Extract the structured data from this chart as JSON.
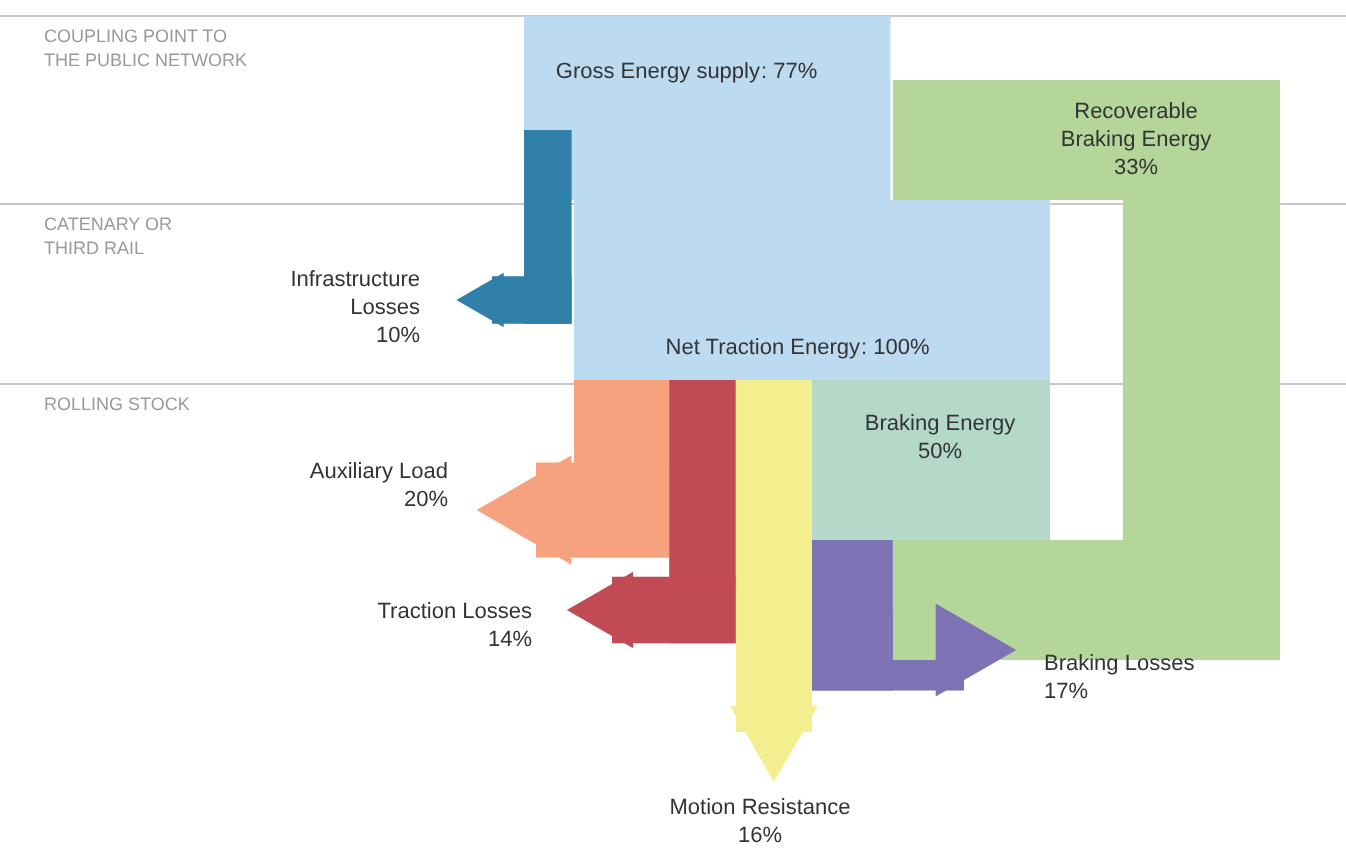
{
  "chart_data": {
    "type": "other",
    "categories": [
      "Gross Energy supply",
      "Infrastructure Losses",
      "Net Traction Energy",
      "Auxiliary Load",
      "Traction Losses",
      "Motion Resistance",
      "Braking Energy",
      "Braking Losses",
      "Recoverable Braking Energy"
    ],
    "values": [
      77,
      10,
      100,
      20,
      14,
      16,
      50,
      17,
      33
    ],
    "value_labels": [
      ": 77%",
      "10%",
      ": 100%",
      "20%",
      "14%",
      "16%",
      "50%",
      "17%",
      "33%"
    ],
    "colors": [
      "#bddbf0",
      "#2f7fa8",
      "#bddbf0",
      "#f6a27e",
      "#c24a55",
      "#f3ef8e",
      "#b4d9c8",
      "#7d72b4",
      "#b5d69a"
    ],
    "annotations": [
      "COUPLING POINT TO THE PUBLIC NETWORK",
      "CATENARY OR THIRD RAIL",
      "ROLLING STOCK"
    ]
  }
}
